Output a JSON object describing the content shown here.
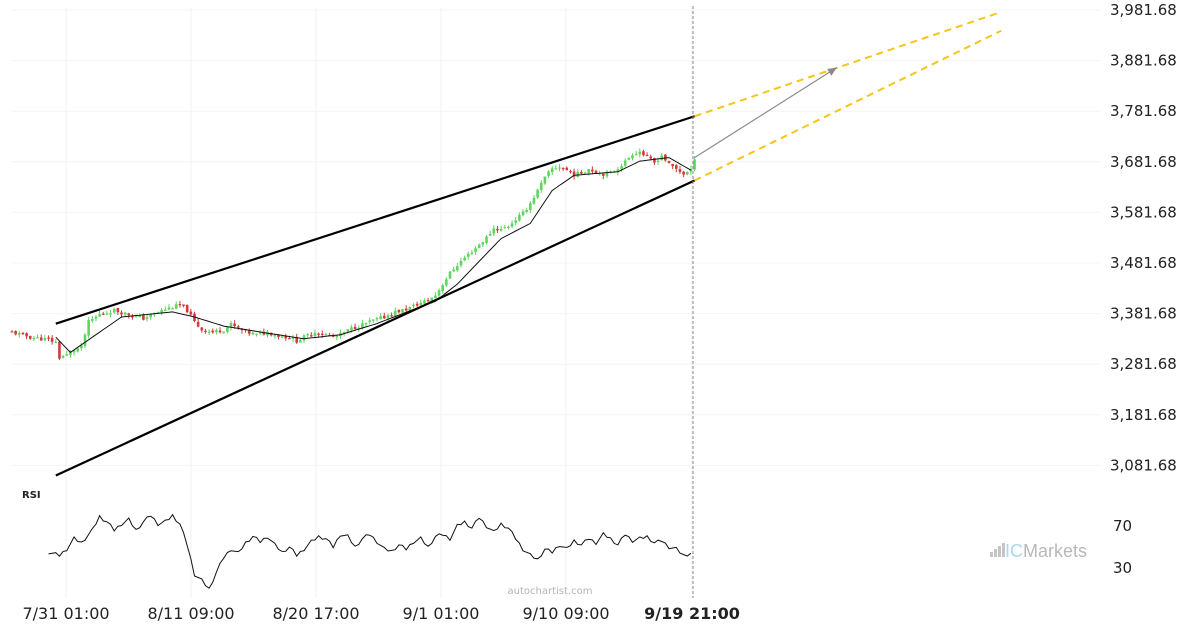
{
  "chart_data": {
    "type": "candlestick",
    "price_axis": {
      "ticks": [
        "3,981.68",
        "3,881.68",
        "3,781.68",
        "3,681.68",
        "3,581.68",
        "3,481.68",
        "3,381.68",
        "3,281.68",
        "3,181.68",
        "3,081.68"
      ],
      "values": [
        3981.68,
        3881.68,
        3781.68,
        3681.68,
        3581.68,
        3481.68,
        3381.68,
        3281.68,
        3181.68,
        3081.68
      ]
    },
    "time_axis": {
      "labels": [
        "7/31 01:00",
        "8/11 09:00",
        "8/20 17:00",
        "9/1 01:00",
        "9/10 09:00",
        "9/19 21:00"
      ],
      "current": "9/19 21:00"
    },
    "price_keypoints": [
      [
        0,
        3345
      ],
      [
        5,
        3335
      ],
      [
        10,
        3330
      ],
      [
        12,
        3325
      ],
      [
        13,
        3295
      ],
      [
        15,
        3300
      ],
      [
        17,
        3310
      ],
      [
        19,
        3315
      ],
      [
        21,
        3365
      ],
      [
        24,
        3380
      ],
      [
        28,
        3388
      ],
      [
        32,
        3380
      ],
      [
        36,
        3372
      ],
      [
        40,
        3385
      ],
      [
        44,
        3395
      ],
      [
        46,
        3398
      ],
      [
        48,
        3388
      ],
      [
        50,
        3365
      ],
      [
        52,
        3350
      ],
      [
        55,
        3345
      ],
      [
        58,
        3350
      ],
      [
        60,
        3360
      ],
      [
        62,
        3352
      ],
      [
        64,
        3345
      ],
      [
        67,
        3340
      ],
      [
        70,
        3345
      ],
      [
        73,
        3338
      ],
      [
        76,
        3335
      ],
      [
        78,
        3328
      ],
      [
        80,
        3335
      ],
      [
        83,
        3345
      ],
      [
        86,
        3340
      ],
      [
        88,
        3335
      ],
      [
        90,
        3340
      ],
      [
        93,
        3352
      ],
      [
        96,
        3360
      ],
      [
        99,
        3368
      ],
      [
        102,
        3375
      ],
      [
        105,
        3385
      ],
      [
        108,
        3390
      ],
      [
        111,
        3400
      ],
      [
        114,
        3408
      ],
      [
        116,
        3418
      ],
      [
        118,
        3440
      ],
      [
        120,
        3462
      ],
      [
        122,
        3478
      ],
      [
        124,
        3492
      ],
      [
        126,
        3505
      ],
      [
        128,
        3518
      ],
      [
        130,
        3532
      ],
      [
        132,
        3550
      ],
      [
        134,
        3548
      ],
      [
        136,
        3555
      ],
      [
        138,
        3568
      ],
      [
        140,
        3580
      ],
      [
        142,
        3600
      ],
      [
        144,
        3625
      ],
      [
        146,
        3650
      ],
      [
        148,
        3668
      ],
      [
        150,
        3672
      ],
      [
        152,
        3665
      ],
      [
        154,
        3656
      ],
      [
        156,
        3660
      ],
      [
        158,
        3668
      ],
      [
        160,
        3662
      ],
      [
        162,
        3658
      ],
      [
        164,
        3660
      ],
      [
        166,
        3670
      ],
      [
        168,
        3682
      ],
      [
        170,
        3698
      ],
      [
        172,
        3702
      ],
      [
        174,
        3690
      ],
      [
        176,
        3680
      ],
      [
        178,
        3695
      ],
      [
        180,
        3676
      ],
      [
        182,
        3668
      ],
      [
        184,
        3658
      ],
      [
        186,
        3664
      ],
      [
        187,
        3690
      ]
    ],
    "ema_keypoints": [
      [
        12,
        3335
      ],
      [
        16,
        3305
      ],
      [
        21,
        3330
      ],
      [
        30,
        3375
      ],
      [
        44,
        3385
      ],
      [
        50,
        3375
      ],
      [
        58,
        3357
      ],
      [
        70,
        3343
      ],
      [
        80,
        3332
      ],
      [
        90,
        3340
      ],
      [
        100,
        3362
      ],
      [
        110,
        3390
      ],
      [
        116,
        3406
      ],
      [
        122,
        3440
      ],
      [
        128,
        3485
      ],
      [
        134,
        3530
      ],
      [
        142,
        3560
      ],
      [
        148,
        3625
      ],
      [
        154,
        3655
      ],
      [
        166,
        3662
      ],
      [
        172,
        3683
      ],
      [
        180,
        3690
      ],
      [
        186,
        3665
      ]
    ],
    "channel": {
      "upper": [
        [
          12,
          3361.7
        ],
        [
          187,
          3771.7
        ]
      ],
      "lower": [
        [
          12,
          3061.7
        ],
        [
          187,
          3644.7
        ]
      ]
    },
    "projection": {
      "upper": [
        [
          187,
          3771.7
        ],
        [
          271,
          3977.7
        ]
      ],
      "lower": [
        [
          187,
          3644.7
        ],
        [
          271,
          3940.7
        ]
      ],
      "arrow": [
        [
          187,
          3690
        ],
        [
          226,
          3868
        ]
      ]
    },
    "rsi": {
      "title": "RSI",
      "levels": [
        "70",
        "30"
      ],
      "level_values": [
        70,
        30
      ],
      "keypoints": [
        [
          10,
          45
        ],
        [
          13,
          42
        ],
        [
          15,
          48
        ],
        [
          17,
          58
        ],
        [
          19,
          54
        ],
        [
          22,
          66
        ],
        [
          24,
          79
        ],
        [
          26,
          74
        ],
        [
          28,
          66
        ],
        [
          30,
          72
        ],
        [
          32,
          76
        ],
        [
          34,
          66
        ],
        [
          36,
          74
        ],
        [
          38,
          80
        ],
        [
          40,
          72
        ],
        [
          42,
          74
        ],
        [
          44,
          80
        ],
        [
          46,
          72
        ],
        [
          48,
          52
        ],
        [
          50,
          24
        ],
        [
          52,
          18
        ],
        [
          54,
          10
        ],
        [
          56,
          26
        ],
        [
          58,
          40
        ],
        [
          60,
          48
        ],
        [
          62,
          44
        ],
        [
          64,
          54
        ],
        [
          66,
          60
        ],
        [
          68,
          55
        ],
        [
          70,
          60
        ],
        [
          72,
          52
        ],
        [
          74,
          45
        ],
        [
          76,
          50
        ],
        [
          78,
          42
        ],
        [
          80,
          48
        ],
        [
          82,
          55
        ],
        [
          84,
          60
        ],
        [
          86,
          58
        ],
        [
          88,
          50
        ],
        [
          90,
          62
        ],
        [
          92,
          60
        ],
        [
          94,
          50
        ],
        [
          96,
          58
        ],
        [
          98,
          62
        ],
        [
          100,
          55
        ],
        [
          102,
          48
        ],
        [
          104,
          46
        ],
        [
          106,
          52
        ],
        [
          108,
          48
        ],
        [
          110,
          55
        ],
        [
          112,
          58
        ],
        [
          114,
          50
        ],
        [
          116,
          60
        ],
        [
          118,
          62
        ],
        [
          120,
          58
        ],
        [
          122,
          70
        ],
        [
          124,
          74
        ],
        [
          126,
          68
        ],
        [
          128,
          78
        ],
        [
          130,
          70
        ],
        [
          132,
          64
        ],
        [
          134,
          72
        ],
        [
          136,
          68
        ],
        [
          138,
          58
        ],
        [
          140,
          48
        ],
        [
          142,
          42
        ],
        [
          144,
          38
        ],
        [
          146,
          48
        ],
        [
          148,
          45
        ],
        [
          150,
          52
        ],
        [
          152,
          48
        ],
        [
          154,
          56
        ],
        [
          156,
          52
        ],
        [
          158,
          58
        ],
        [
          160,
          54
        ],
        [
          162,
          62
        ],
        [
          164,
          58
        ],
        [
          166,
          52
        ],
        [
          168,
          62
        ],
        [
          170,
          56
        ],
        [
          172,
          58
        ],
        [
          174,
          60
        ],
        [
          176,
          54
        ],
        [
          178,
          56
        ],
        [
          180,
          50
        ],
        [
          182,
          48
        ],
        [
          184,
          42
        ],
        [
          186,
          44
        ]
      ]
    }
  },
  "watermark": "autochartist.com",
  "logo": {
    "bars_icon": "signal-bars-icon",
    "prefix": "IC",
    "name": "Markets",
    "bar_color": "#c4c4c4",
    "accent_color": "#a8d8f0"
  },
  "colors": {
    "bull": "#5ed65e",
    "bear": "#d43a3a",
    "projection": "#f5c518",
    "channel": "#000000",
    "arrow": "#8a8a8a"
  }
}
